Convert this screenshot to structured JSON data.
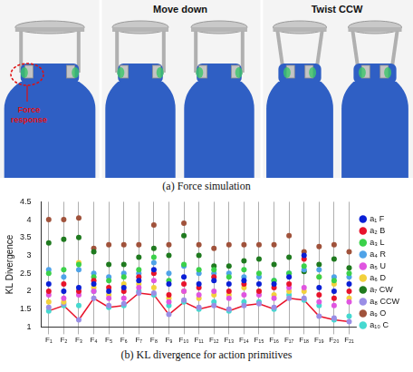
{
  "panel_a": {
    "annotation": "Force response",
    "labels": [
      "Move down",
      "Twist CCW"
    ],
    "caption": "(a) Force simulation"
  },
  "chart_data": {
    "type": "scatter",
    "title": "(b) KL divergence for action primitives",
    "y_label": "KL Divergence",
    "categories": [
      "F₁",
      "F₂",
      "F₃",
      "F₄",
      "F₅",
      "F₆",
      "F₇",
      "F₈",
      "F₉",
      "F₁₀",
      "F₁₁",
      "F₁₂",
      "F₁₃",
      "F₁₄",
      "F₁₅",
      "F₁₆",
      "F₁₇",
      "F₁₈",
      "F₁₉",
      "F₂₀",
      "F₂₁"
    ],
    "ylim": [
      1,
      4.5
    ],
    "yticks": [
      1,
      1.5,
      2,
      2.5,
      3,
      3.5,
      4,
      4.5
    ],
    "grid": true,
    "legend": "right",
    "series": [
      {
        "name": "a₁ F",
        "color": "#0a1fd6",
        "values": [
          2.2,
          2.0,
          2.1,
          2.2,
          2.0,
          2.1,
          2.3,
          2.6,
          2.2,
          2.4,
          2.2,
          2.3,
          2.2,
          2.3,
          2.2,
          2.2,
          2.4,
          3.0,
          2.1,
          2.0,
          2.2
        ]
      },
      {
        "name": "a₂ B",
        "color": "#e8132b",
        "values": [
          2.0,
          2.2,
          2.0,
          2.3,
          2.1,
          2.0,
          2.4,
          2.5,
          1.9,
          2.2,
          2.1,
          2.4,
          2.0,
          2.2,
          2.0,
          2.1,
          2.2,
          2.9,
          1.9,
          1.8,
          2.0
        ]
      },
      {
        "name": "a₃ L",
        "color": "#3bd14a",
        "values": [
          2.5,
          2.6,
          2.75,
          2.4,
          2.3,
          2.4,
          2.6,
          2.95,
          2.3,
          2.75,
          2.6,
          2.6,
          2.4,
          2.6,
          2.5,
          2.3,
          2.5,
          2.7,
          2.4,
          2.3,
          2.5
        ]
      },
      {
        "name": "a₄ R",
        "color": "#4fa3e8",
        "values": [
          2.6,
          2.4,
          2.6,
          2.5,
          2.4,
          2.5,
          2.5,
          2.8,
          2.5,
          2.7,
          2.5,
          2.5,
          2.5,
          2.4,
          2.4,
          2.3,
          2.5,
          2.6,
          2.6,
          2.4,
          2.4
        ]
      },
      {
        "name": "a₅ U",
        "color": "#e055e0",
        "values": [
          1.9,
          1.8,
          1.9,
          2.0,
          1.8,
          1.8,
          2.1,
          2.3,
          1.7,
          2.0,
          1.9,
          2.0,
          1.8,
          1.9,
          1.9,
          1.8,
          2.1,
          2.1,
          1.7,
          1.6,
          1.7
        ]
      },
      {
        "name": "a₆ D",
        "color": "#f2d13c",
        "values": [
          1.7,
          1.7,
          2.8,
          2.1,
          1.9,
          2.2,
          2.2,
          2.1,
          1.8,
          2.0,
          1.8,
          1.9,
          1.9,
          2.1,
          2.0,
          1.9,
          2.0,
          2.0,
          2.4,
          2.2,
          1.8
        ]
      },
      {
        "name": "a₇ CW",
        "color": "#1f7a1f",
        "values": [
          3.35,
          3.45,
          3.5,
          3.1,
          2.75,
          2.75,
          2.95,
          3.2,
          3.0,
          3.55,
          3.0,
          2.7,
          2.7,
          2.85,
          2.9,
          2.75,
          2.95,
          2.55,
          2.75,
          2.9,
          2.65
        ]
      },
      {
        "name": "a₈ CCW",
        "color": "#9a8ee6",
        "values": [
          1.55,
          1.65,
          1.2,
          1.8,
          1.6,
          1.65,
          1.95,
          1.95,
          1.35,
          1.75,
          1.55,
          1.6,
          1.5,
          1.6,
          1.65,
          1.55,
          1.8,
          1.8,
          1.3,
          1.25,
          1.15
        ]
      },
      {
        "name": "a₉ O",
        "color": "#a0523b",
        "values": [
          4.0,
          4.0,
          4.05,
          3.2,
          3.3,
          3.3,
          3.3,
          3.85,
          3.3,
          3.9,
          3.3,
          3.2,
          3.3,
          3.3,
          3.3,
          3.3,
          3.55,
          3.1,
          3.25,
          3.3,
          3.1
        ]
      },
      {
        "name": "a₁₀ C",
        "color": "#45d9d0",
        "values": [
          1.45,
          1.6,
          1.6,
          2.0,
          1.55,
          1.6,
          2.0,
          1.9,
          1.6,
          1.7,
          1.5,
          1.7,
          1.45,
          1.7,
          1.7,
          1.5,
          1.9,
          1.75,
          1.6,
          1.2,
          1.3
        ]
      },
      {
        "type": "line",
        "color": "#e8132b",
        "values": [
          1.45,
          1.6,
          1.2,
          1.8,
          1.55,
          1.6,
          1.95,
          1.9,
          1.35,
          1.7,
          1.5,
          1.6,
          1.45,
          1.6,
          1.65,
          1.5,
          1.8,
          1.75,
          1.3,
          1.2,
          1.15
        ]
      }
    ]
  }
}
